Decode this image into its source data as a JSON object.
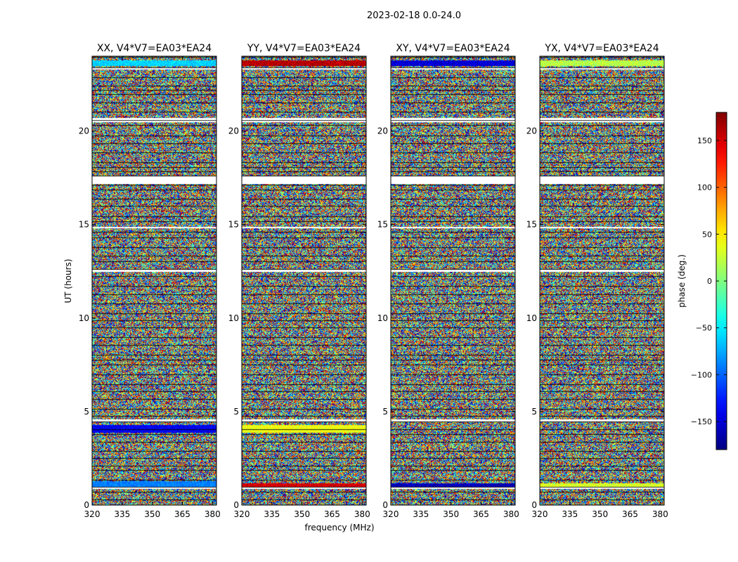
{
  "figure": {
    "suptitle": "2023-02-18 0.0-24.0",
    "xlabel": "frequency (MHz)",
    "ylabel": "UT (hours)",
    "cbar_label": "phase (deg.)"
  },
  "chart_data": {
    "type": "heatmap",
    "title": "2023-02-18 0.0-24.0",
    "xlabel": "frequency (MHz)",
    "ylabel": "UT (hours)",
    "xlim": [
      320,
      382
    ],
    "ylim": [
      0,
      24
    ],
    "xticks": [
      320,
      335,
      350,
      365,
      380
    ],
    "yticks": [
      0,
      5,
      10,
      15,
      20
    ],
    "panels": [
      {
        "title": "XX, V4*V7=EA03*EA24",
        "pol": "XX"
      },
      {
        "title": "YY, V4*V7=EA03*EA24",
        "pol": "YY"
      },
      {
        "title": "XY, V4*V7=EA03*EA24",
        "pol": "XY"
      },
      {
        "title": "YX, V4*V7=EA03*EA24",
        "pol": "YX"
      }
    ],
    "colorbar": {
      "label": "phase (deg.)",
      "range": [
        -180,
        180
      ],
      "ticks": [
        -150,
        -100,
        -50,
        0,
        50,
        100,
        150
      ],
      "colormap": "jet"
    },
    "gaps_hours": [
      [
        0.9,
        1.0
      ],
      [
        4.5,
        4.6
      ],
      [
        12.5,
        12.6
      ],
      [
        14.8,
        14.9
      ],
      [
        17.2,
        17.6
      ],
      [
        20.5,
        20.7
      ],
      [
        23.3,
        23.4
      ]
    ],
    "uniform_bands_deg": {
      "XX": [
        [
          1.0,
          1.3,
          -90
        ],
        [
          3.9,
          4.3,
          -140
        ],
        [
          23.5,
          23.8,
          -60
        ]
      ],
      "YY": [
        [
          1.0,
          1.2,
          150
        ],
        [
          3.9,
          4.3,
          40
        ],
        [
          23.5,
          23.8,
          160
        ]
      ],
      "XY": [
        [
          1.0,
          1.2,
          -160
        ],
        [
          23.5,
          23.8,
          -150
        ]
      ],
      "YX": [
        [
          1.0,
          1.2,
          30
        ],
        [
          23.5,
          23.8,
          20
        ]
      ]
    }
  }
}
